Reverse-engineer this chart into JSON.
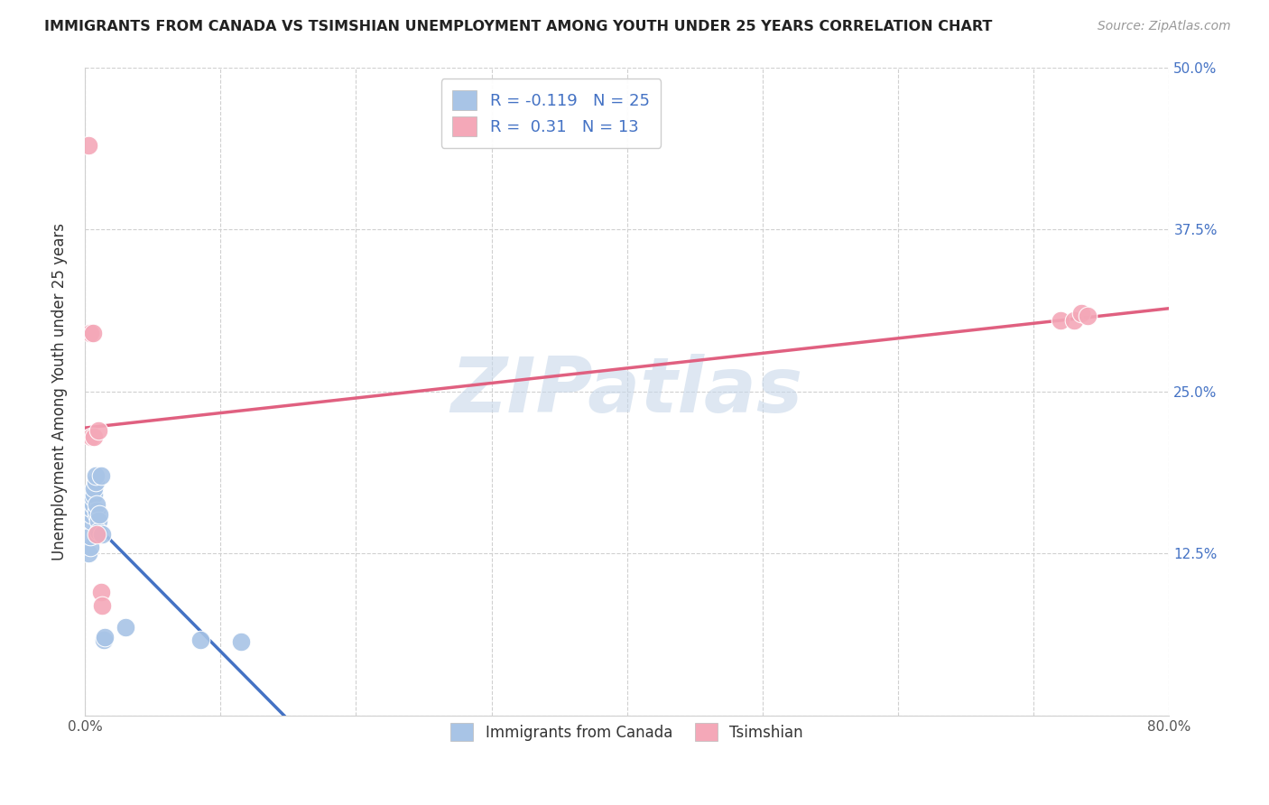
{
  "title": "IMMIGRANTS FROM CANADA VS TSIMSHIAN UNEMPLOYMENT AMONG YOUTH UNDER 25 YEARS CORRELATION CHART",
  "source": "Source: ZipAtlas.com",
  "ylabel": "Unemployment Among Youth under 25 years",
  "xlim": [
    0.0,
    0.8
  ],
  "ylim": [
    0.0,
    0.5
  ],
  "xticks": [
    0.0,
    0.1,
    0.2,
    0.3,
    0.4,
    0.5,
    0.6,
    0.7,
    0.8
  ],
  "ytick_positions": [
    0.0,
    0.125,
    0.25,
    0.375,
    0.5
  ],
  "ytick_labels": [
    "",
    "12.5%",
    "25.0%",
    "37.5%",
    "50.0%"
  ],
  "canada_x": [
    0.003,
    0.004,
    0.004,
    0.005,
    0.005,
    0.005,
    0.006,
    0.006,
    0.007,
    0.007,
    0.008,
    0.008,
    0.009,
    0.009,
    0.009,
    0.01,
    0.01,
    0.011,
    0.012,
    0.013,
    0.014,
    0.015,
    0.03,
    0.085,
    0.115
  ],
  "canada_y": [
    0.125,
    0.13,
    0.138,
    0.15,
    0.155,
    0.16,
    0.163,
    0.168,
    0.17,
    0.175,
    0.18,
    0.185,
    0.155,
    0.158,
    0.163,
    0.15,
    0.142,
    0.155,
    0.185,
    0.14,
    0.058,
    0.06,
    0.068,
    0.058,
    0.057
  ],
  "tsimshian_x": [
    0.003,
    0.004,
    0.005,
    0.006,
    0.007,
    0.009,
    0.01,
    0.012,
    0.013,
    0.72,
    0.73,
    0.735,
    0.74
  ],
  "tsimshian_y": [
    0.44,
    0.295,
    0.215,
    0.295,
    0.215,
    0.14,
    0.22,
    0.095,
    0.085,
    0.305,
    0.305,
    0.31,
    0.308
  ],
  "canada_color": "#a8c4e6",
  "tsimshian_color": "#f4a8b8",
  "canada_line_color": "#4472c4",
  "tsimshian_line_color": "#e06080",
  "canada_R": -0.119,
  "canada_N": 25,
  "tsimshian_R": 0.31,
  "tsimshian_N": 13,
  "legend_label_canada": "Immigrants from Canada",
  "legend_label_tsimshian": "Tsimshian",
  "background_color": "#ffffff",
  "watermark": "ZIPatlas",
  "watermark_color": "#c8d8ea",
  "canada_line_x_end": 0.3,
  "tsimshian_line_solid": true
}
